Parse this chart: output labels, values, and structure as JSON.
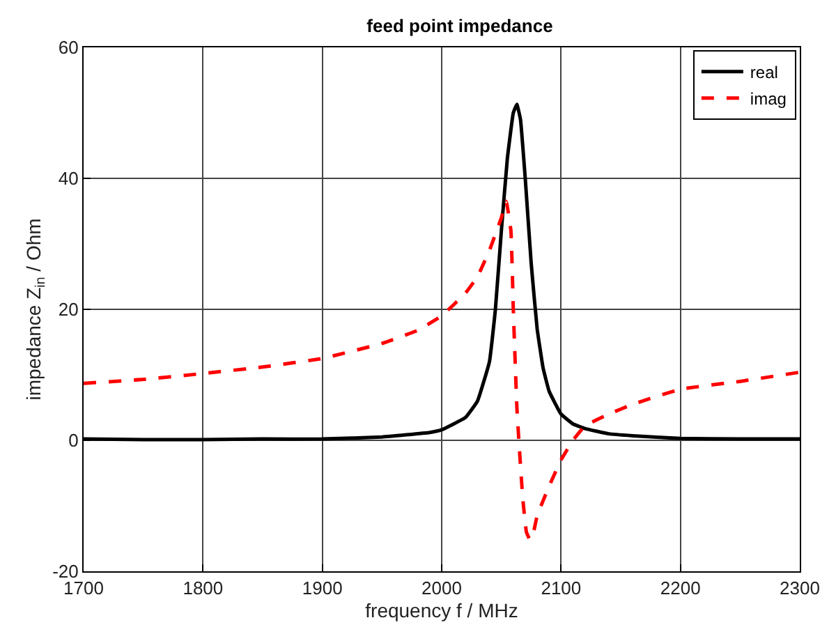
{
  "chart_data": {
    "type": "line",
    "title": "feed point impedance",
    "xlabel": "frequency f / MHz",
    "ylabel": "impedance Z$_{in}$ / Ohm",
    "xlim": [
      1700,
      2300
    ],
    "xticks": [
      1700,
      1800,
      1900,
      2000,
      2100,
      2200,
      2300
    ],
    "ylim": [
      -20,
      60
    ],
    "yticks": [
      -20,
      0,
      20,
      40,
      60
    ],
    "grid": true,
    "legend": "top right",
    "series": [
      {
        "name": "real",
        "color": "#000000",
        "line_style": "solid",
        "x": [
          1700,
          1750,
          1800,
          1850,
          1900,
          1950,
          1990,
          2000,
          2020,
          2030,
          2040,
          2045,
          2050,
          2055,
          2060,
          2063,
          2066,
          2070,
          2075,
          2080,
          2085,
          2090,
          2100,
          2110,
          2120,
          2140,
          2160,
          2200,
          2250,
          2300
        ],
        "values": [
          0.2,
          0.1,
          0.1,
          0.2,
          0.2,
          0.5,
          1.2,
          1.6,
          3.5,
          6,
          12,
          20,
          32,
          43,
          50,
          51.3,
          49,
          40,
          27,
          17,
          11,
          7.5,
          4,
          2.5,
          1.8,
          1,
          0.7,
          0.3,
          0.2,
          0.2
        ]
      },
      {
        "name": "imag",
        "color": "#ff0000",
        "line_style": "dashed",
        "x": [
          1700,
          1750,
          1800,
          1850,
          1900,
          1950,
          1980,
          2000,
          2020,
          2030,
          2040,
          2050,
          2054,
          2058,
          2060,
          2063,
          2065,
          2068,
          2071,
          2074,
          2077,
          2080,
          2090,
          2100,
          2110,
          2120,
          2140,
          2160,
          2200,
          2250,
          2300
        ],
        "values": [
          8.7,
          9.3,
          10.2,
          11.2,
          12.5,
          14.8,
          16.8,
          19,
          22.5,
          25,
          29,
          34,
          36.5,
          32,
          20,
          5,
          -1,
          -9,
          -14,
          -15.2,
          -14,
          -11.5,
          -7,
          -3,
          0,
          2.2,
          4,
          5.5,
          7.8,
          9,
          10.4
        ]
      }
    ]
  }
}
